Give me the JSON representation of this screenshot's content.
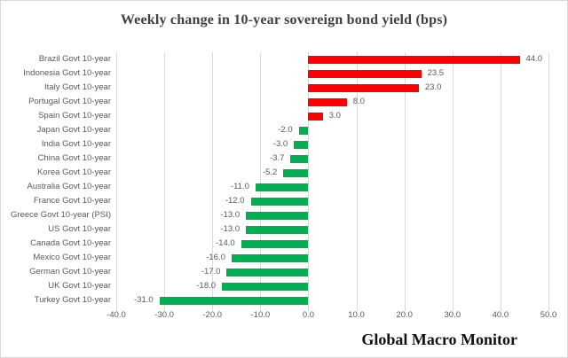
{
  "chart_data": {
    "type": "bar",
    "orientation": "horizontal",
    "title": "Weekly change in 10-year sovereign bond yield (bps)",
    "categories": [
      "Brazil Govt 10-year",
      "Indonesia Govt 10-year",
      "Italy Govt 10-year",
      "Portugal Govt 10-year",
      "Spain Govt 10-year",
      "Japan Govt 10-year",
      "India Govt 10-year",
      "China Govt 10-year",
      "Korea Govt 10-year",
      "Australia Govt 10-year",
      "France Govt 10-year",
      "Greece Govt 10-year (PSI)",
      "US Govt 10-year",
      "Canada Govt 10-year",
      "Mexico Govt 10-year",
      "German Govt 10-year",
      "UK Govt 10-year",
      "Turkey Govt 10-year"
    ],
    "values": [
      44.0,
      23.5,
      23.0,
      8.0,
      3.0,
      -2.0,
      -3.0,
      -3.7,
      -5.2,
      -11.0,
      -12.0,
      -13.0,
      -13.0,
      -14.0,
      -16.0,
      -17.0,
      -18.0,
      -31.0
    ],
    "value_labels": [
      "44.0",
      "23.5",
      "23.0",
      "8.0",
      "3.0",
      "-2.0",
      "-3.0",
      "-3.7",
      "-5.2",
      "-11.0",
      "-12.0",
      "-13.0",
      "-13.0",
      "-14.0",
      "-16.0",
      "-17.0",
      "-18.0",
      "-31.0"
    ],
    "xlim": [
      -40,
      50
    ],
    "x_ticks": [
      -40,
      -30,
      -20,
      -10,
      0,
      10,
      20,
      30,
      40,
      50
    ],
    "x_tick_labels": [
      "-40.0",
      "-30.0",
      "-20.0",
      "-10.0",
      "0.0",
      "10.0",
      "20.0",
      "30.0",
      "40.0",
      "50.0"
    ],
    "grid": true,
    "legend": false,
    "xlabel": "",
    "ylabel": "",
    "colors": {
      "positive_bar": "#ff0000",
      "negative_bar": "#00b050",
      "gridline": "#d9d9d9",
      "text": "#595959",
      "title_text": "#404040"
    }
  },
  "footer": {
    "brand": "Global Macro Monitor"
  }
}
